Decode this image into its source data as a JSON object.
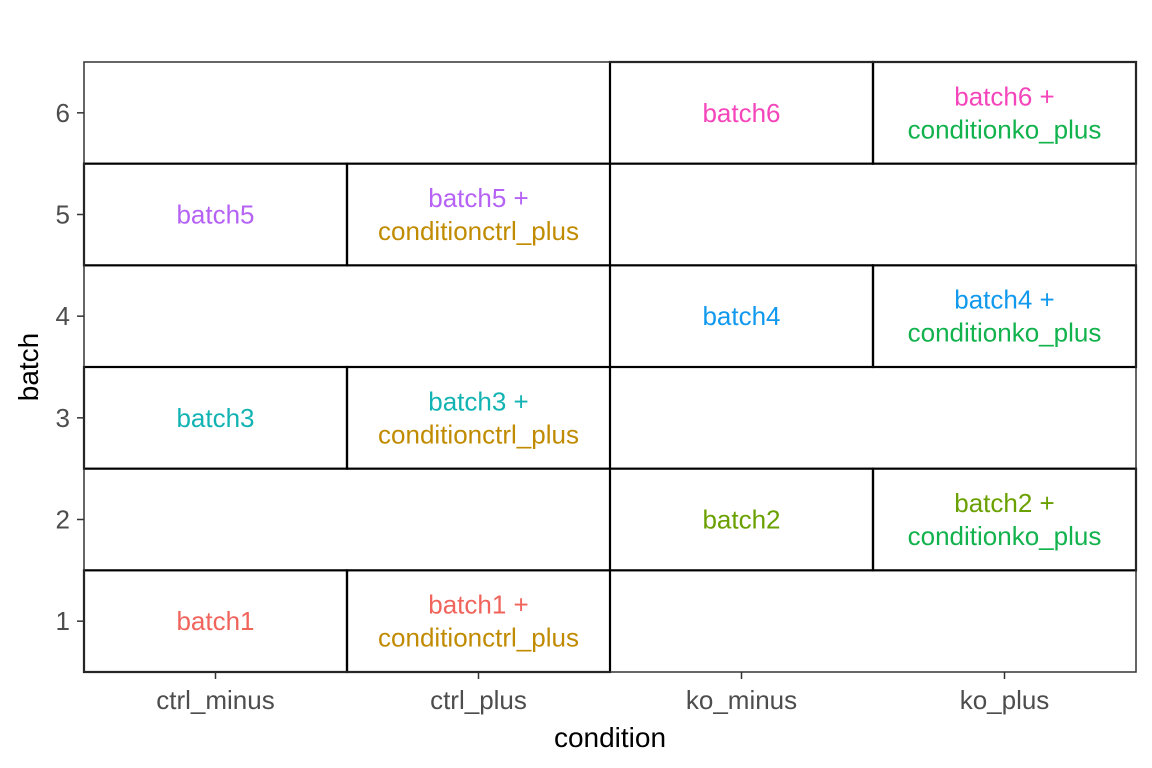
{
  "chart_data": {
    "type": "table",
    "xlabel": "condition",
    "ylabel": "batch",
    "x_categories": [
      "ctrl_minus",
      "ctrl_plus",
      "ko_minus",
      "ko_plus"
    ],
    "y_categories": [
      "1",
      "2",
      "3",
      "4",
      "5",
      "6"
    ],
    "grid": false,
    "cells": [
      {
        "condition": "ctrl_minus",
        "batch": "1",
        "lines": [
          {
            "text": "batch1",
            "color": "#f0645c"
          }
        ]
      },
      {
        "condition": "ctrl_plus",
        "batch": "1",
        "lines": [
          {
            "text": "batch1 +",
            "color": "#f0645c"
          },
          {
            "text": "conditionctrl_plus",
            "color": "#c18b00"
          }
        ]
      },
      {
        "condition": "ko_minus",
        "batch": "2",
        "lines": [
          {
            "text": "batch2",
            "color": "#6aa100"
          }
        ]
      },
      {
        "condition": "ko_plus",
        "batch": "2",
        "lines": [
          {
            "text": "batch2 +",
            "color": "#6aa100"
          },
          {
            "text": "conditionko_plus",
            "color": "#12b24d"
          }
        ]
      },
      {
        "condition": "ctrl_minus",
        "batch": "3",
        "lines": [
          {
            "text": "batch3",
            "color": "#13b3b3"
          }
        ]
      },
      {
        "condition": "ctrl_plus",
        "batch": "3",
        "lines": [
          {
            "text": "batch3 +",
            "color": "#13b3b3"
          },
          {
            "text": "conditionctrl_plus",
            "color": "#c18b00"
          }
        ]
      },
      {
        "condition": "ko_minus",
        "batch": "4",
        "lines": [
          {
            "text": "batch4",
            "color": "#1199ee"
          }
        ]
      },
      {
        "condition": "ko_plus",
        "batch": "4",
        "lines": [
          {
            "text": "batch4 +",
            "color": "#1199ee"
          },
          {
            "text": "conditionko_plus",
            "color": "#12b24d"
          }
        ]
      },
      {
        "condition": "ctrl_minus",
        "batch": "5",
        "lines": [
          {
            "text": "batch5",
            "color": "#b562f5"
          }
        ]
      },
      {
        "condition": "ctrl_plus",
        "batch": "5",
        "lines": [
          {
            "text": "batch5 +",
            "color": "#b562f5"
          },
          {
            "text": "conditionctrl_plus",
            "color": "#c18b00"
          }
        ]
      },
      {
        "condition": "ko_minus",
        "batch": "6",
        "lines": [
          {
            "text": "batch6",
            "color": "#f545bb"
          }
        ]
      },
      {
        "condition": "ko_plus",
        "batch": "6",
        "lines": [
          {
            "text": "batch6 +",
            "color": "#f545bb"
          },
          {
            "text": "conditionko_plus",
            "color": "#12b24d"
          }
        ]
      }
    ]
  }
}
